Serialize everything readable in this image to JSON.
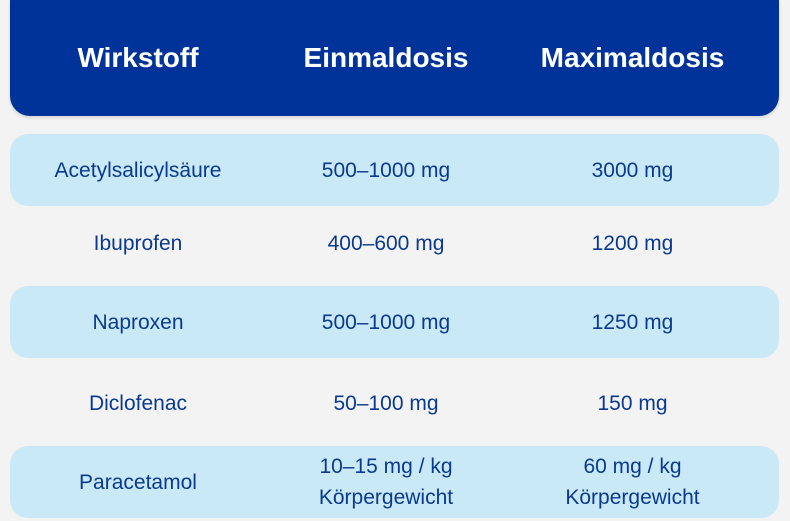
{
  "header": {
    "col1": "Wirkstoff",
    "col2": "Einmaldosis",
    "col3": "Maximaldosis"
  },
  "rows": [
    {
      "substance": "Acetylsalicylsäure",
      "single_dose": "500–1000 mg",
      "max_dose": "3000 mg"
    },
    {
      "substance": "Ibuprofen",
      "single_dose": "400–600 mg",
      "max_dose": "1200 mg"
    },
    {
      "substance": "Naproxen",
      "single_dose": "500–1000 mg",
      "max_dose": "1250 mg"
    },
    {
      "substance": "Diclofenac",
      "single_dose": "50–100 mg",
      "max_dose": "150 mg"
    },
    {
      "substance": "Paracetamol",
      "single_dose_line1": "10–15 mg / kg",
      "single_dose_line2": "Körpergewicht",
      "max_dose_line1": "60 mg / kg",
      "max_dose_line2": "Körpergewicht"
    }
  ],
  "colors": {
    "header_bg": "#003399",
    "header_text": "#ffffff",
    "row_shaded_bg": "#c9e9f7",
    "row_text": "#0a3a8f",
    "page_bg": "#f3f3f3"
  }
}
